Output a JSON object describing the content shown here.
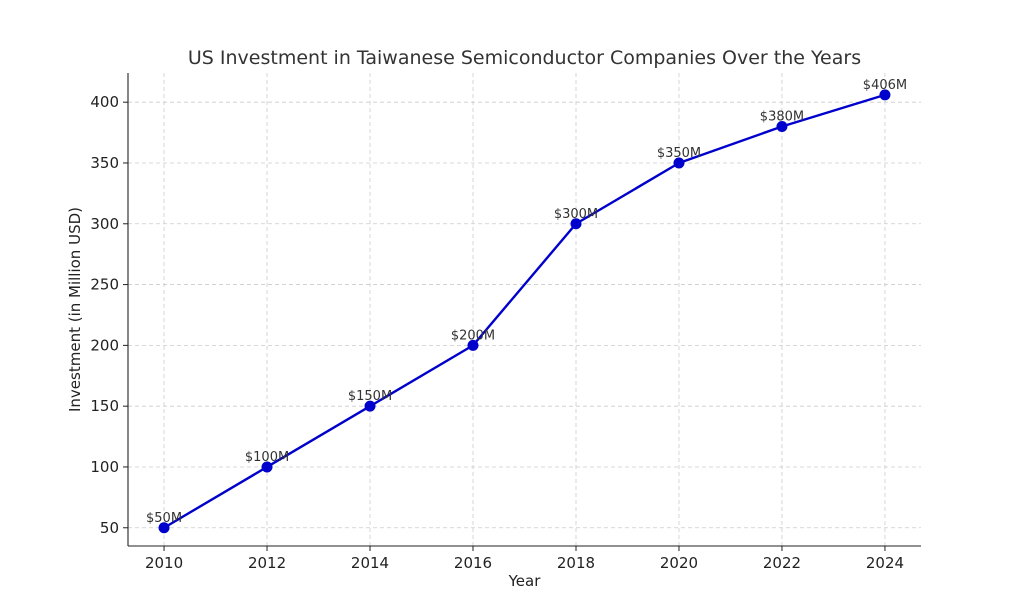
{
  "chart_data": {
    "type": "line",
    "title": "US Investment in Taiwanese Semiconductor Companies Over the Years",
    "xlabel": "Year",
    "ylabel": "Investment (in Million USD)",
    "x": [
      2010,
      2012,
      2014,
      2016,
      2018,
      2020,
      2022,
      2024
    ],
    "series": [
      {
        "values": [
          50,
          100,
          150,
          200,
          300,
          350,
          380,
          406
        ],
        "color": "#0000cc",
        "marker": "circle",
        "data_labels": [
          "$50M",
          "$100M",
          "$150M",
          "$200M",
          "$300M",
          "$350M",
          "$380M",
          "$406M"
        ]
      }
    ],
    "x_ticks": [
      "2010",
      "2012",
      "2014",
      "2016",
      "2018",
      "2020",
      "2022",
      "2024"
    ],
    "y_ticks": [
      50,
      100,
      150,
      200,
      250,
      300,
      350,
      400
    ],
    "y_tick_labels": [
      "50",
      "100",
      "150",
      "200",
      "250",
      "300",
      "350",
      "400"
    ],
    "xlim": [
      2009.3,
      2024.7
    ],
    "ylim": [
      35,
      424
    ],
    "grid": true,
    "grid_style": "dashed"
  }
}
